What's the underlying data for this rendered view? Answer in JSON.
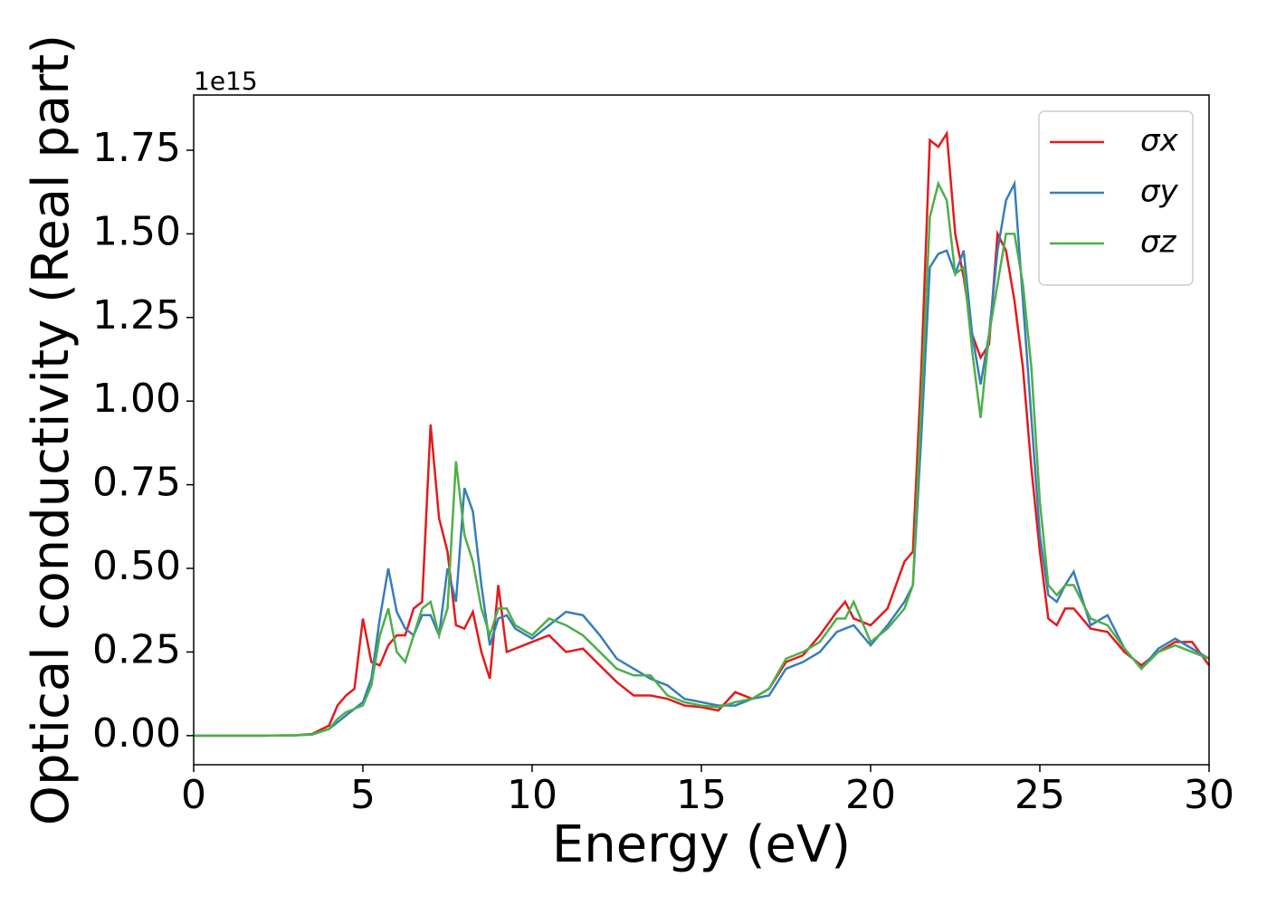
{
  "chart_data": {
    "type": "line",
    "x_label": "Energy (eV)",
    "y_label": "Optical conductivity (Real part)",
    "y_offset_label": "1e15",
    "legend": "upper right",
    "xlim": [
      0,
      30
    ],
    "ylim": [
      -0.087,
      1.915
    ],
    "xticks": [
      0,
      5,
      10,
      15,
      20,
      25,
      30
    ],
    "yticks": [
      {
        "value": 0,
        "label": "0.00"
      },
      {
        "value": 0.25,
        "label": "0.25"
      },
      {
        "value": 0.5,
        "label": "0.50"
      },
      {
        "value": 0.75,
        "label": "0.75"
      },
      {
        "value": 1,
        "label": "1.00"
      },
      {
        "value": 1.25,
        "label": "1.25"
      },
      {
        "value": 1.5,
        "label": "1.50"
      },
      {
        "value": 1.75,
        "label": "1.75"
      }
    ],
    "x": [
      0,
      1,
      2,
      3,
      3.5,
      4,
      4.25,
      4.5,
      4.75,
      5,
      5.25,
      5.5,
      5.75,
      6,
      6.25,
      6.5,
      6.75,
      7,
      7.25,
      7.5,
      7.75,
      8,
      8.25,
      8.5,
      8.75,
      9,
      9.25,
      9.5,
      10,
      10.5,
      11,
      11.5,
      12,
      12.5,
      13,
      13.5,
      14,
      14.5,
      15,
      15.5,
      16,
      16.5,
      17,
      17.5,
      18,
      18.5,
      19,
      19.25,
      19.5,
      20,
      20.5,
      21,
      21.25,
      21.5,
      21.75,
      22,
      22.25,
      22.5,
      22.75,
      23,
      23.25,
      23.5,
      23.75,
      24,
      24.25,
      24.5,
      24.75,
      25,
      25.25,
      25.5,
      25.75,
      26,
      26.5,
      27,
      27.5,
      28,
      28.5,
      29,
      29.5,
      30
    ],
    "series": [
      {
        "name": "σx",
        "color": "#e41a1c",
        "values": [
          0,
          0,
          0,
          0.001,
          0.005,
          0.03,
          0.09,
          0.12,
          0.14,
          0.35,
          0.22,
          0.21,
          0.27,
          0.3,
          0.3,
          0.38,
          0.4,
          0.93,
          0.65,
          0.55,
          0.33,
          0.32,
          0.37,
          0.25,
          0.17,
          0.45,
          0.25,
          0.26,
          0.28,
          0.3,
          0.25,
          0.26,
          0.21,
          0.16,
          0.12,
          0.12,
          0.11,
          0.09,
          0.085,
          0.075,
          0.13,
          0.11,
          0.14,
          0.22,
          0.24,
          0.3,
          0.37,
          0.4,
          0.35,
          0.33,
          0.38,
          0.52,
          0.55,
          1.1,
          1.78,
          1.76,
          1.8,
          1.5,
          1.37,
          1.2,
          1.13,
          1.17,
          1.5,
          1.45,
          1.3,
          1.1,
          0.8,
          0.55,
          0.35,
          0.33,
          0.38,
          0.38,
          0.32,
          0.31,
          0.25,
          0.21,
          0.25,
          0.28,
          0.28,
          0.21
        ]
      },
      {
        "name": "σy",
        "color": "#377eb8",
        "values": [
          0,
          0,
          0,
          0.001,
          0.004,
          0.02,
          0.04,
          0.06,
          0.08,
          0.1,
          0.17,
          0.35,
          0.5,
          0.37,
          0.32,
          0.3,
          0.36,
          0.36,
          0.3,
          0.5,
          0.4,
          0.74,
          0.67,
          0.45,
          0.27,
          0.35,
          0.36,
          0.32,
          0.29,
          0.33,
          0.37,
          0.36,
          0.3,
          0.23,
          0.2,
          0.17,
          0.15,
          0.11,
          0.1,
          0.09,
          0.09,
          0.11,
          0.12,
          0.2,
          0.22,
          0.25,
          0.31,
          0.32,
          0.33,
          0.27,
          0.33,
          0.4,
          0.45,
          0.9,
          1.4,
          1.44,
          1.45,
          1.38,
          1.45,
          1.2,
          1.05,
          1.2,
          1.45,
          1.6,
          1.65,
          1.3,
          0.95,
          0.6,
          0.42,
          0.4,
          0.45,
          0.49,
          0.33,
          0.36,
          0.26,
          0.2,
          0.26,
          0.29,
          0.26,
          0.23
        ]
      },
      {
        "name": "σz",
        "color": "#4daf4a",
        "values": [
          0,
          0,
          0,
          0.001,
          0.003,
          0.02,
          0.05,
          0.07,
          0.08,
          0.09,
          0.15,
          0.3,
          0.38,
          0.25,
          0.22,
          0.3,
          0.38,
          0.4,
          0.3,
          0.38,
          0.82,
          0.6,
          0.52,
          0.38,
          0.3,
          0.38,
          0.38,
          0.33,
          0.3,
          0.35,
          0.33,
          0.3,
          0.25,
          0.2,
          0.18,
          0.18,
          0.12,
          0.1,
          0.09,
          0.085,
          0.1,
          0.11,
          0.14,
          0.23,
          0.25,
          0.28,
          0.35,
          0.35,
          0.4,
          0.28,
          0.32,
          0.38,
          0.45,
          1.0,
          1.55,
          1.65,
          1.6,
          1.38,
          1.4,
          1.15,
          0.95,
          1.2,
          1.35,
          1.5,
          1.5,
          1.35,
          1.1,
          0.7,
          0.45,
          0.42,
          0.45,
          0.45,
          0.35,
          0.33,
          0.26,
          0.2,
          0.25,
          0.27,
          0.25,
          0.23
        ]
      }
    ]
  }
}
